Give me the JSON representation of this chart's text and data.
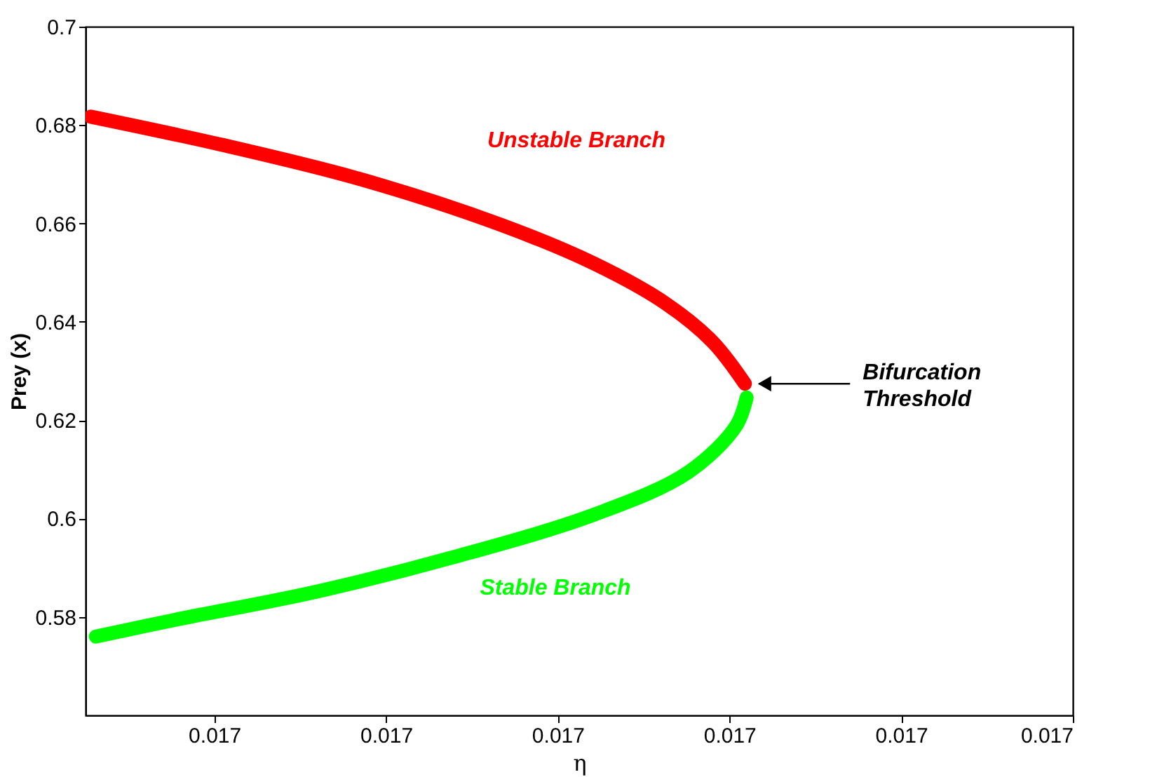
{
  "chart_data": {
    "type": "line",
    "xlabel": "η",
    "ylabel": "Prey (x)",
    "xlim": [
      0.0169925,
      0.01705
    ],
    "ylim": [
      0.56,
      0.7
    ],
    "xticks": [
      {
        "value": 0.017,
        "label": "0.017"
      },
      {
        "value": 0.01701,
        "label": "0.017"
      },
      {
        "value": 0.01702,
        "label": "0.017"
      },
      {
        "value": 0.01703,
        "label": "0.017"
      },
      {
        "value": 0.01704,
        "label": "0.017"
      },
      {
        "value": 0.01705,
        "label": "0.017"
      }
    ],
    "yticks": [
      0.58,
      0.6,
      0.62,
      0.64,
      0.66,
      0.68,
      0.7
    ],
    "grid": false,
    "marker": "none",
    "line_style": "solid",
    "series": [
      {
        "color": "#ff0000",
        "x": [
          0.0169928,
          0.0170004,
          0.0170086,
          0.0170167,
          0.0170222,
          0.0170263,
          0.017029,
          0.0170309
        ],
        "values": [
          0.6817,
          0.676,
          0.6689,
          0.6597,
          0.6517,
          0.6437,
          0.636,
          0.6274
        ]
      },
      {
        "color": "#00ff00",
        "x": [
          0.017031,
          0.0170304,
          0.0170276,
          0.0170222,
          0.0170141,
          0.0170059,
          0.0169977,
          0.0169931
        ],
        "values": [
          0.6246,
          0.6189,
          0.6094,
          0.6009,
          0.5923,
          0.5851,
          0.5794,
          0.576
        ]
      }
    ],
    "annotations": [
      "Unstable Branch",
      "Stable Branch",
      "Bifurcation Threshold"
    ]
  }
}
